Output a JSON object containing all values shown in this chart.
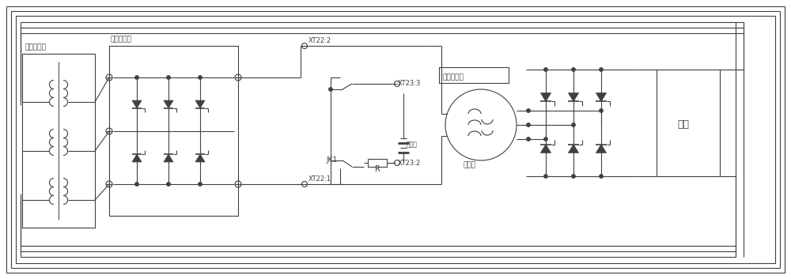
{
  "bg_color": "#ffffff",
  "line_color": "#404040",
  "figsize": [
    10.0,
    3.53
  ],
  "dpi": 100,
  "labels": {
    "transformer": "屏磁变压器",
    "excitation_ctrl": "屏磁控制器",
    "generator": "发电机",
    "voltage_sensor": "电压传感器",
    "load": "负载",
    "battery": "蓄电池",
    "JK1": "JK1",
    "R": "R",
    "XT22_1": "XT22:1",
    "XT23_2": "XT23:2",
    "XT23_3": "XT23:3",
    "XT22_2": "XT22:2"
  }
}
